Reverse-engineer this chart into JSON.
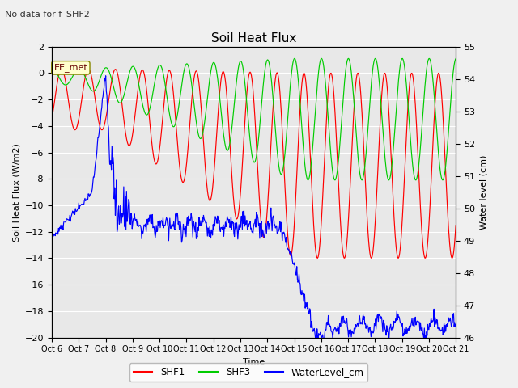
{
  "title": "Soil Heat Flux",
  "note": "No data for f_SHF2",
  "label_box": "EE_met",
  "xlabel": "Time",
  "ylabel_left": "Soil Heat Flux (W/m2)",
  "ylabel_right": "Water level (cm)",
  "ylim_left": [
    -20,
    2
  ],
  "ylim_right": [
    46.0,
    55.0
  ],
  "yticks_left": [
    -20,
    -18,
    -16,
    -14,
    -12,
    -10,
    -8,
    -6,
    -4,
    -2,
    0,
    2
  ],
  "yticks_right": [
    46.0,
    47.0,
    48.0,
    49.0,
    50.0,
    51.0,
    52.0,
    53.0,
    54.0,
    55.0
  ],
  "xtick_labels": [
    "Oct 6",
    "Oct 7",
    "Oct 8",
    "Oct 9",
    "Oct 10",
    "Oct 11",
    "Oct 12",
    "Oct 13",
    "Oct 14",
    "Oct 15",
    "Oct 16",
    "Oct 17",
    "Oct 18",
    "Oct 19",
    "Oct 20",
    "Oct 21"
  ],
  "background_color": "#f0f0f0",
  "plot_bg_color": "#e8e8e8",
  "grid_color": "#ffffff",
  "shf1_color": "#ff0000",
  "shf3_color": "#00cc00",
  "water_color": "#0000ff",
  "legend_items": [
    "SHF1",
    "SHF3",
    "WaterLevel_cm"
  ],
  "legend_colors": [
    "#ff0000",
    "#00cc00",
    "#0000ff"
  ]
}
